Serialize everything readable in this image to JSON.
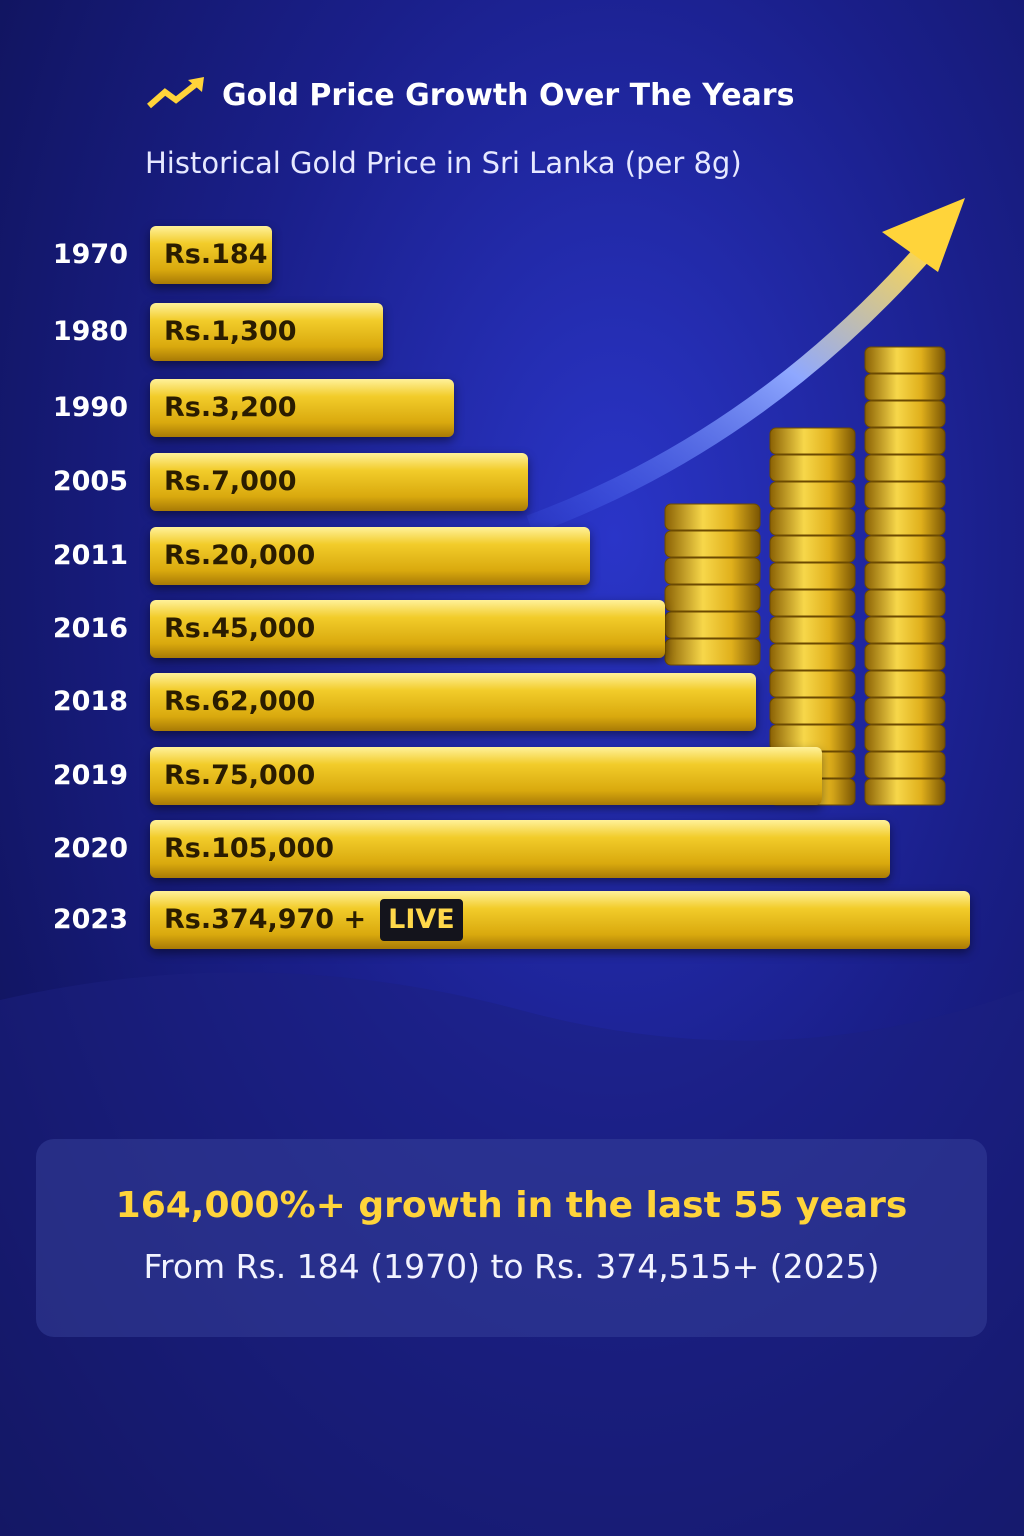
{
  "header": {
    "title": "Gold Price Growth Over The Years",
    "subtitle": "Historical Gold Price in Sri Lanka (per 8g)"
  },
  "rows": [
    {
      "year": "1970",
      "price": "Rs.184"
    },
    {
      "year": "1980",
      "price": "Rs.1,300"
    },
    {
      "year": "1990",
      "price": "Rs.3,200"
    },
    {
      "year": "2005",
      "price": "Rs.7,000"
    },
    {
      "year": "2011",
      "price": "Rs.20,000"
    },
    {
      "year": "2016",
      "price": "Rs.45,000"
    },
    {
      "year": "2018",
      "price": "Rs.62,000"
    },
    {
      "year": "2019",
      "price": "Rs.75,000"
    },
    {
      "year": "2020",
      "price": "Rs.105,000"
    },
    {
      "year": "2023",
      "price": "Rs.374,970 +",
      "badge": "LIVE"
    }
  ],
  "summary": {
    "headline": "164,000%+ growth in the last 55 years",
    "detail": "From Rs. 184 (1970) to Rs. 374,515+ (2025)"
  }
}
